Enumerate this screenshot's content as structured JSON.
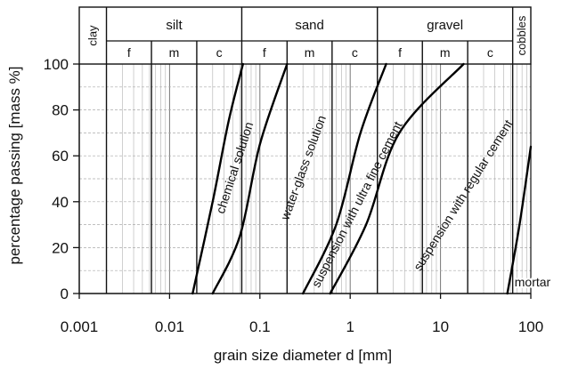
{
  "chart_data": {
    "type": "line",
    "xlabel": "grain size diameter d [mm]",
    "ylabel": "percentage passing [mass %]",
    "x_scale": "log",
    "xlim": [
      0.001,
      100
    ],
    "ylim": [
      0,
      100
    ],
    "x_ticks": [
      "0.001",
      "0.01",
      "0.1",
      "1",
      "10",
      "100"
    ],
    "y_ticks": [
      "0",
      "20",
      "40",
      "60",
      "80",
      "100"
    ],
    "grid": true,
    "soil_classes": {
      "clay": "clay",
      "cobbles": "cobbles",
      "groups": [
        {
          "name": "silt",
          "subdivisions": [
            "f",
            "m",
            "c"
          ]
        },
        {
          "name": "sand",
          "subdivisions": [
            "f",
            "m",
            "c"
          ]
        },
        {
          "name": "gravel",
          "subdivisions": [
            "f",
            "m",
            "c"
          ]
        }
      ]
    },
    "series": [
      {
        "name": "chemical solution",
        "x": [
          0.018,
          0.03,
          0.045,
          0.065
        ],
        "y": [
          0,
          40,
          75,
          100
        ]
      },
      {
        "name": "water-glass solution",
        "x": [
          0.03,
          0.06,
          0.1,
          0.2
        ],
        "y": [
          0,
          25,
          65,
          100
        ]
      },
      {
        "name": "suspension with ultra fine cement",
        "x": [
          0.3,
          0.7,
          1.3,
          2.5
        ],
        "y": [
          0,
          30,
          70,
          100
        ]
      },
      {
        "name": "suspension with regular cement",
        "x": [
          0.6,
          1.5,
          3.5,
          18
        ],
        "y": [
          0,
          30,
          70,
          100
        ]
      },
      {
        "name": "mortar",
        "x": [
          55,
          75,
          100
        ],
        "y": [
          0,
          30,
          64
        ]
      }
    ]
  }
}
